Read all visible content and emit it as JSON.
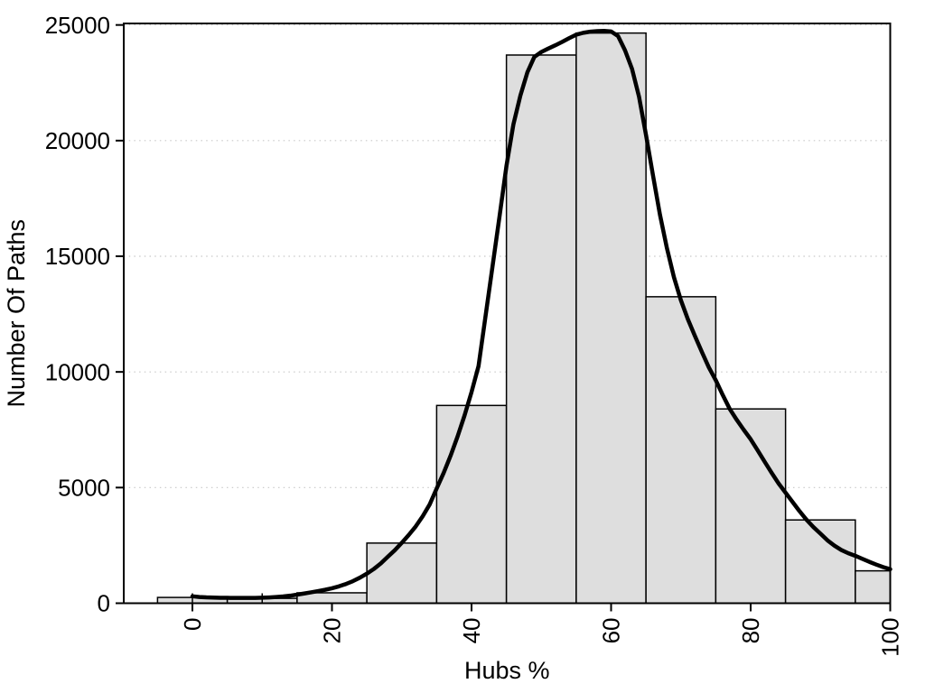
{
  "figure": {
    "background": "#ffffff"
  },
  "chart_data": {
    "type": "bar",
    "subtype": "histogram-with-density-curve",
    "title": "",
    "xlabel": "Hubs %",
    "ylabel": "Number Of Paths",
    "xlim": [
      -9.84,
      100
    ],
    "ylim": [
      0,
      25065
    ],
    "x_ticks": [
      0,
      20,
      40,
      60,
      80,
      100
    ],
    "x_tick_labels": [
      "0",
      "20",
      "40",
      "60",
      "80",
      "100"
    ],
    "x_tick_labels_rotated": true,
    "y_ticks": [
      0,
      5000,
      10000,
      15000,
      20000,
      25000
    ],
    "y_tick_labels": [
      "0",
      "5000",
      "10000",
      "15000",
      "20000",
      "25000"
    ],
    "grid": "horizontal-dotted",
    "legend": "none",
    "bin_edges": [
      -5,
      5,
      15,
      25,
      35,
      45,
      55,
      65,
      75,
      85,
      95,
      100
    ],
    "counts": [
      250,
      210,
      450,
      2600,
      8550,
      23700,
      24650,
      13250,
      8400,
      3600,
      1400
    ],
    "rug_ticks": [
      0,
      10
    ],
    "density_curve": [
      [
        0,
        300
      ],
      [
        1,
        270
      ],
      [
        2,
        252
      ],
      [
        3,
        242
      ],
      [
        4,
        236
      ],
      [
        5,
        232
      ],
      [
        6,
        230
      ],
      [
        7,
        229
      ],
      [
        8,
        229
      ],
      [
        9,
        231
      ],
      [
        10,
        238
      ],
      [
        11,
        250
      ],
      [
        12,
        268
      ],
      [
        13,
        292
      ],
      [
        14,
        325
      ],
      [
        15,
        370
      ],
      [
        16,
        420
      ],
      [
        17,
        470
      ],
      [
        18,
        525
      ],
      [
        19,
        580
      ],
      [
        20,
        645
      ],
      [
        21,
        730
      ],
      [
        22,
        830
      ],
      [
        23,
        955
      ],
      [
        24,
        1105
      ],
      [
        25,
        1280
      ],
      [
        26,
        1480
      ],
      [
        27,
        1720
      ],
      [
        28,
        2010
      ],
      [
        29,
        2290
      ],
      [
        30,
        2610
      ],
      [
        31,
        2950
      ],
      [
        32,
        3320
      ],
      [
        33,
        3760
      ],
      [
        34,
        4270
      ],
      [
        35,
        4960
      ],
      [
        36,
        5630
      ],
      [
        37,
        6380
      ],
      [
        38,
        7210
      ],
      [
        39,
        8120
      ],
      [
        40,
        9130
      ],
      [
        41,
        10250
      ],
      [
        42,
        12400
      ],
      [
        43,
        14550
      ],
      [
        44,
        16700
      ],
      [
        45,
        18900
      ],
      [
        46,
        20700
      ],
      [
        47,
        21950
      ],
      [
        48,
        22950
      ],
      [
        49,
        23620
      ],
      [
        50,
        23830
      ],
      [
        51,
        23980
      ],
      [
        52,
        24120
      ],
      [
        53,
        24270
      ],
      [
        54,
        24430
      ],
      [
        55,
        24580
      ],
      [
        56,
        24660
      ],
      [
        57,
        24710
      ],
      [
        58,
        24735
      ],
      [
        59,
        24745
      ],
      [
        60,
        24720
      ],
      [
        61,
        24520
      ],
      [
        62,
        23900
      ],
      [
        63,
        23100
      ],
      [
        64,
        21900
      ],
      [
        65,
        20250
      ],
      [
        66,
        18500
      ],
      [
        67,
        16800
      ],
      [
        68,
        15350
      ],
      [
        69,
        14100
      ],
      [
        70,
        13100
      ],
      [
        71,
        12280
      ],
      [
        72,
        11560
      ],
      [
        73,
        10870
      ],
      [
        74,
        10200
      ],
      [
        75,
        9640
      ],
      [
        76,
        9000
      ],
      [
        77,
        8400
      ],
      [
        78,
        7930
      ],
      [
        79,
        7500
      ],
      [
        80,
        7090
      ],
      [
        81,
        6610
      ],
      [
        82,
        6120
      ],
      [
        83,
        5640
      ],
      [
        84,
        5180
      ],
      [
        85,
        4780
      ],
      [
        86,
        4380
      ],
      [
        87,
        3980
      ],
      [
        88,
        3610
      ],
      [
        89,
        3290
      ],
      [
        90,
        3010
      ],
      [
        91,
        2720
      ],
      [
        92,
        2490
      ],
      [
        93,
        2300
      ],
      [
        94,
        2160
      ],
      [
        95,
        2050
      ],
      [
        96,
        1920
      ],
      [
        97,
        1790
      ],
      [
        98,
        1670
      ],
      [
        99,
        1560
      ],
      [
        100,
        1470
      ]
    ],
    "colors": {
      "bar_fill": "#dedede",
      "bar_stroke": "#000000",
      "curve": "#000000",
      "grid": "#c8c8c8",
      "axis": "#000000",
      "text": "#000000"
    }
  }
}
